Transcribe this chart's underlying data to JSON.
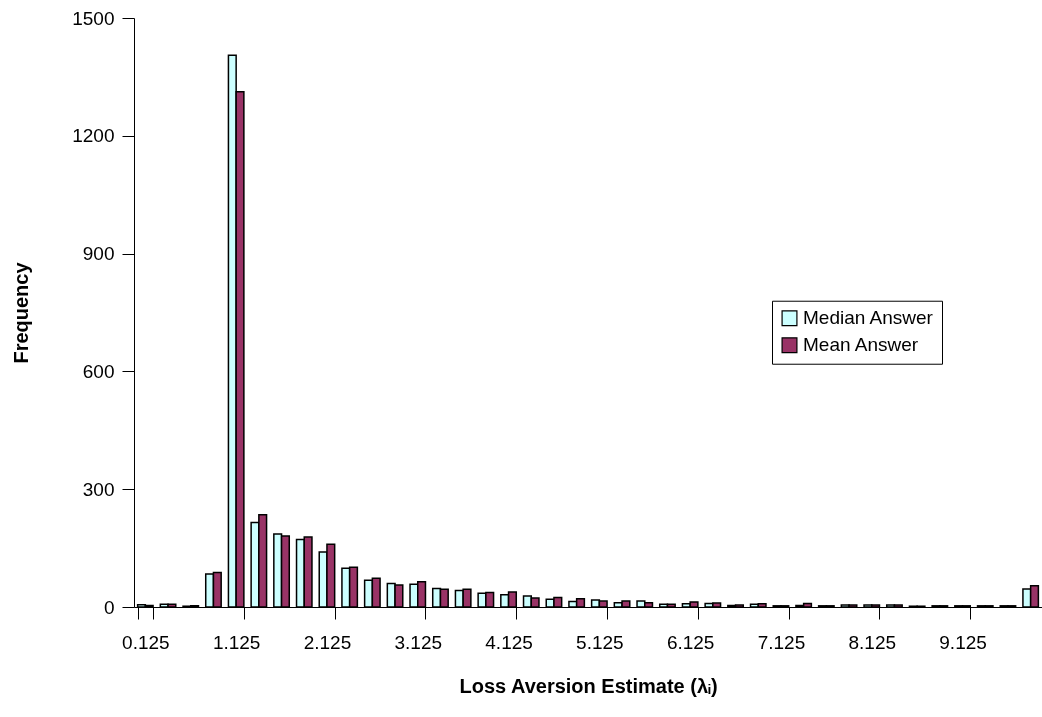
{
  "chart_data": {
    "type": "bar",
    "xlabel": "Loss Aversion Estimate (λᵢ)",
    "ylabel": "Frequency",
    "categories": [
      "0.125",
      null,
      null,
      null,
      "1.125",
      null,
      null,
      null,
      "2.125",
      null,
      null,
      null,
      "3.125",
      null,
      null,
      null,
      "4.125",
      null,
      null,
      null,
      "5.125",
      null,
      null,
      null,
      "6.125",
      null,
      null,
      null,
      "7.125",
      null,
      null,
      null,
      "8.125",
      null,
      null,
      null,
      "9.125",
      null,
      null,
      null
    ],
    "series": [
      {
        "name": "Median Answer",
        "color": "#ccffff",
        "values": [
          6,
          7,
          2,
          84,
          1405,
          215,
          186,
          172,
          140,
          99,
          68,
          60,
          58,
          47,
          42,
          35,
          31,
          28,
          20,
          14,
          18,
          11,
          15,
          7,
          8,
          9,
          4,
          7,
          3,
          4,
          3,
          5,
          5,
          5,
          2,
          3,
          3,
          3,
          3,
          46
        ]
      },
      {
        "name": "Mean Answer",
        "color": "#993366",
        "values": [
          4,
          7,
          3,
          88,
          1312,
          235,
          181,
          178,
          160,
          101,
          73,
          56,
          64,
          45,
          45,
          37,
          38,
          23,
          24,
          21,
          15,
          15,
          11,
          7,
          13,
          10,
          5,
          8,
          3,
          9,
          3,
          5,
          5,
          5,
          2,
          3,
          3,
          3,
          3,
          54
        ]
      }
    ],
    "ylim": [
      0,
      1500
    ],
    "yticks": [
      0,
      300,
      600,
      900,
      1200,
      1500
    ],
    "grid": false,
    "legend": "right"
  }
}
